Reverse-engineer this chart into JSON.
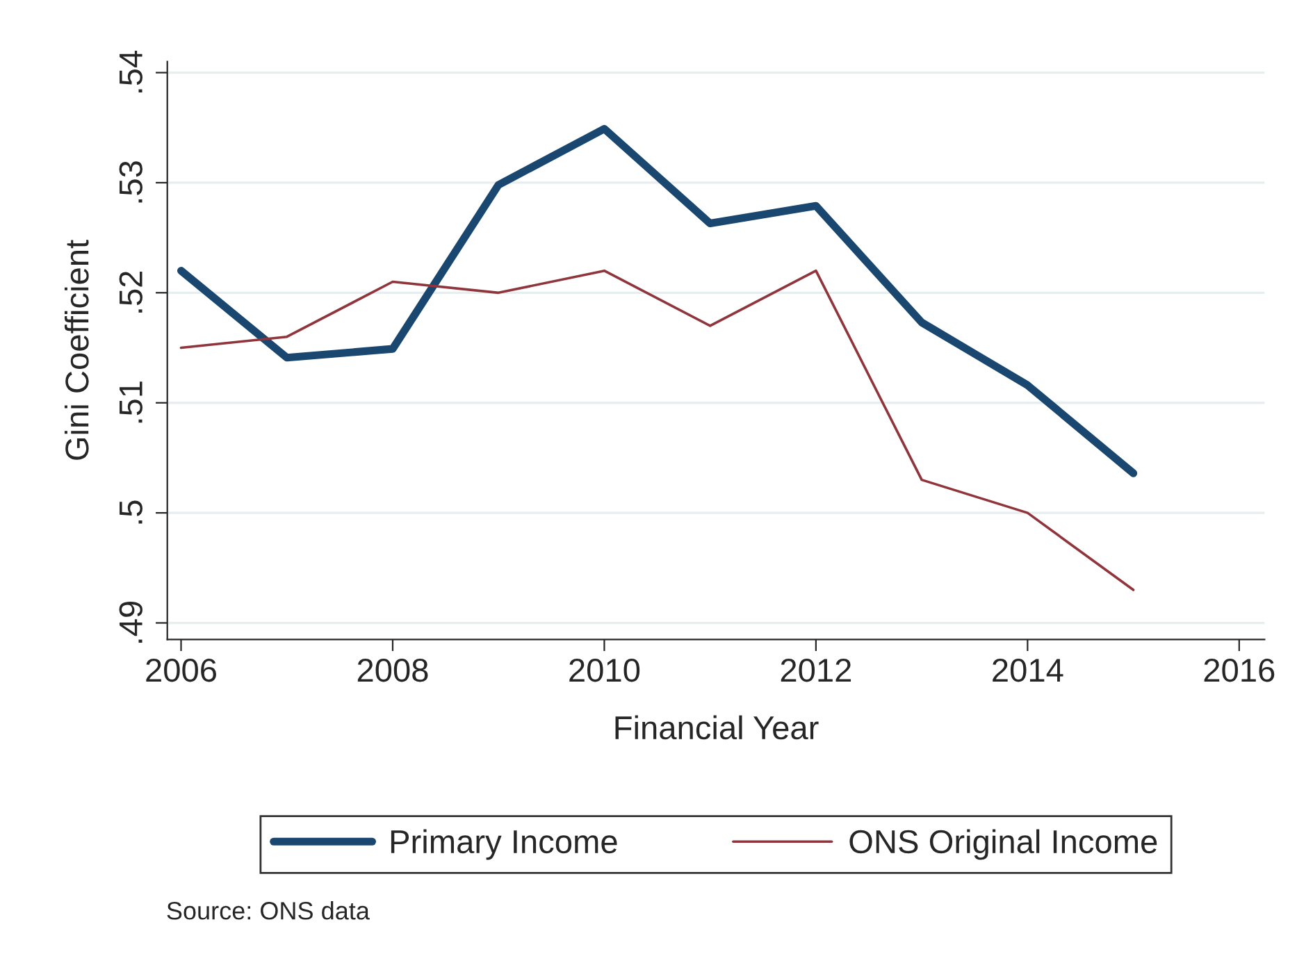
{
  "chart_data": {
    "type": "line",
    "xlabel": "Financial Year",
    "ylabel": "Gini Coefficient",
    "x": [
      2006,
      2007,
      2008,
      2009,
      2010,
      2011,
      2012,
      2013,
      2014,
      2015
    ],
    "series": [
      {
        "name": "Primary Income",
        "color": "#1a476f",
        "values": [
          0.522,
          0.5141,
          0.5149,
          0.5298,
          0.5349,
          0.5263,
          0.5279,
          0.5173,
          0.5116,
          0.5036
        ]
      },
      {
        "name": "ONS Original Income",
        "color": "#90353b",
        "values": [
          0.515,
          0.516,
          0.521,
          0.52,
          0.522,
          0.517,
          0.522,
          0.503,
          0.5,
          0.493
        ]
      }
    ],
    "xlim": [
      2005.87,
      2016.24
    ],
    "xticks": [
      2006,
      2008,
      2010,
      2012,
      2014,
      2016
    ],
    "ylim": [
      0.4885,
      0.541
    ],
    "yticks": [
      {
        "value": 0.49,
        "label": ".49"
      },
      {
        "value": 0.5,
        "label": ".5"
      },
      {
        "value": 0.51,
        "label": ".51"
      },
      {
        "value": 0.52,
        "label": ".52"
      },
      {
        "value": 0.53,
        "label": ".53"
      },
      {
        "value": 0.54,
        "label": ".54"
      }
    ],
    "grid": "y",
    "legend": "bottom",
    "line_style": "solid",
    "annotations": [
      "Source: ONS data"
    ]
  }
}
